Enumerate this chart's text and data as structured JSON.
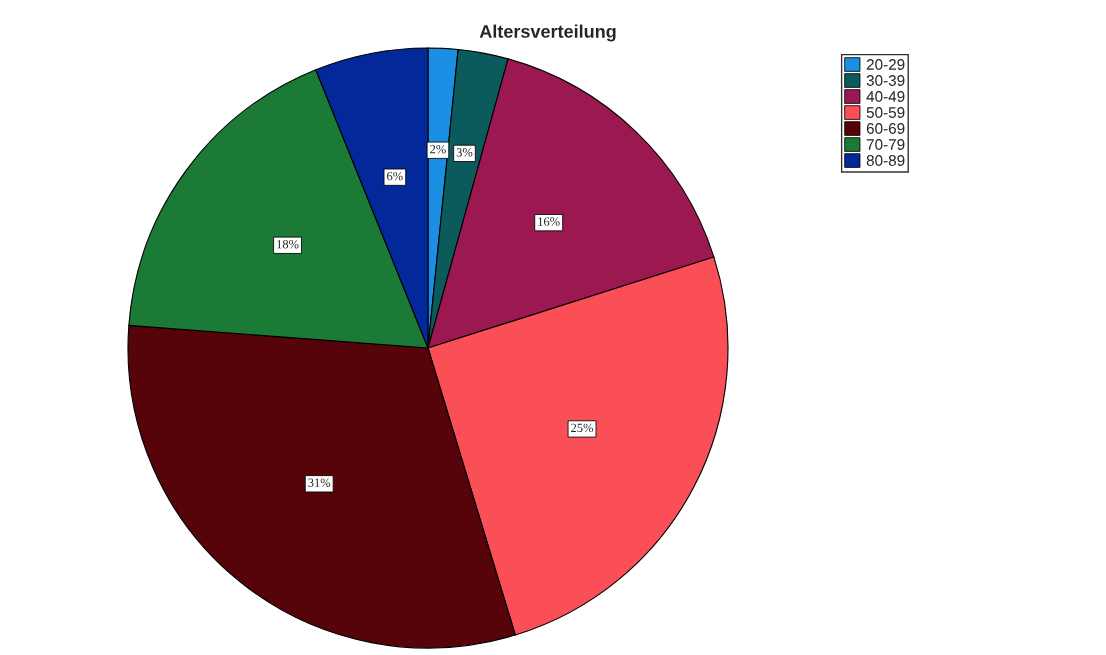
{
  "chart_data": {
    "type": "pie",
    "title": "Altersverteilung",
    "categories": [
      "20-29",
      "30-39",
      "40-49",
      "50-59",
      "60-69",
      "70-79",
      "80-89"
    ],
    "values": [
      1.6,
      2.7,
      15.8,
      25.2,
      30.9,
      17.7,
      6.1
    ],
    "value_labels": [
      "2%",
      "3%",
      "16%",
      "25%",
      "31%",
      "18%",
      "6%"
    ],
    "colors": [
      "#1b8fe3",
      "#0b5a5c",
      "#9c1850",
      "#fb4f58",
      "#560409",
      "#1b7a36",
      "#03289a"
    ],
    "legend": "top right"
  }
}
